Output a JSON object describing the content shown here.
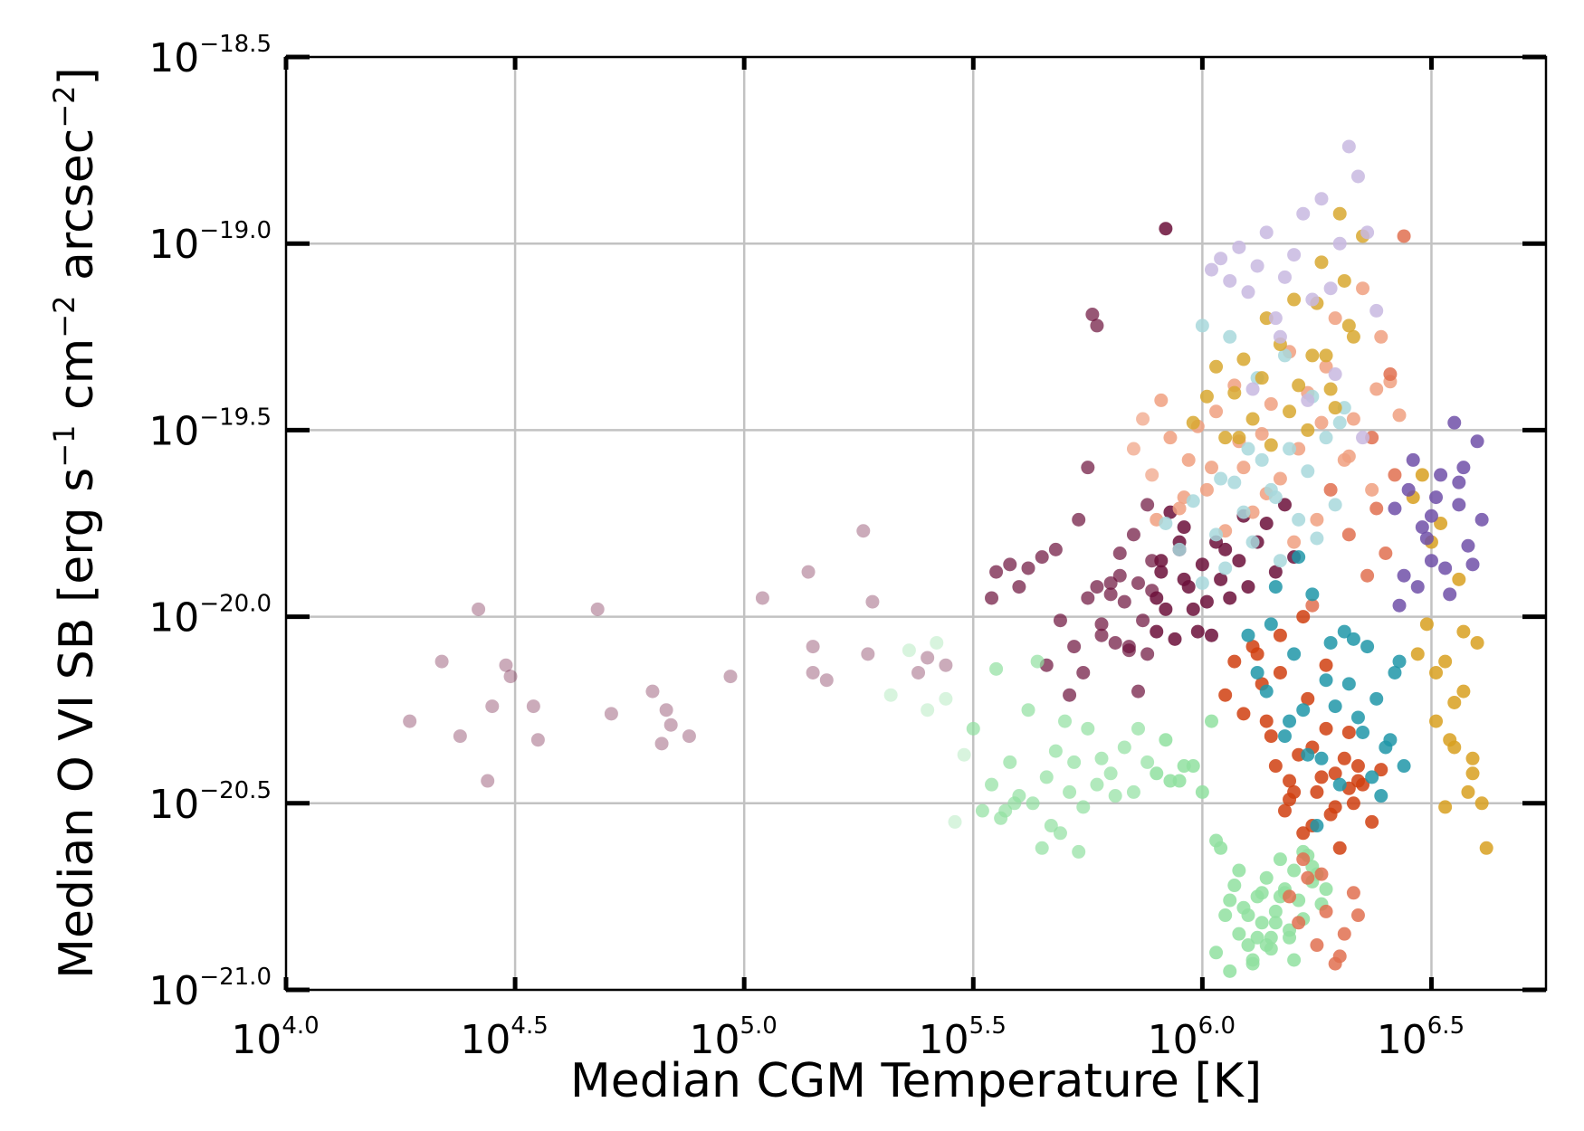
{
  "chart_data": {
    "type": "scatter",
    "xlabel": "Median CGM Temperature [K]",
    "ylabel": {
      "text": "Median O VI SB [erg s",
      "parts": [
        "Median O VI SB [erg s",
        "−1",
        " cm",
        "−2",
        " arcsec",
        "−2",
        "]"
      ]
    },
    "xscale": "log",
    "yscale": "log",
    "xlim": [
      4.0,
      6.75
    ],
    "ylim": [
      -21.0,
      -18.5
    ],
    "xticks": [
      {
        "base": "10",
        "exp": "4.0",
        "value": 4.0
      },
      {
        "base": "10",
        "exp": "4.5",
        "value": 4.5
      },
      {
        "base": "10",
        "exp": "5.0",
        "value": 5.0
      },
      {
        "base": "10",
        "exp": "5.5",
        "value": 5.5
      },
      {
        "base": "10",
        "exp": "6.0",
        "value": 6.0
      },
      {
        "base": "10",
        "exp": "6.5",
        "value": 6.5
      }
    ],
    "yticks": [
      {
        "base": "10",
        "exp": "−21.0",
        "value": -21.0
      },
      {
        "base": "10",
        "exp": "−20.5",
        "value": -20.5
      },
      {
        "base": "10",
        "exp": "−20.0",
        "value": -20.0
      },
      {
        "base": "10",
        "exp": "−19.5",
        "value": -19.5
      },
      {
        "base": "10",
        "exp": "−19.0",
        "value": -19.0
      },
      {
        "base": "10",
        "exp": "−18.5",
        "value": -18.5
      }
    ],
    "grid": true,
    "legend": "none",
    "series": [
      {
        "color": "#6b0f3a",
        "x": [
          4.27,
          4.34,
          4.38,
          4.42,
          4.44,
          4.45,
          4.48,
          4.49,
          4.54,
          4.55,
          4.68,
          4.71,
          4.8,
          4.82,
          4.83,
          4.84,
          4.88,
          4.97,
          5.04,
          5.14,
          5.15,
          5.15,
          5.18,
          5.26,
          5.27,
          5.28,
          5.38,
          5.4,
          5.44,
          5.55,
          5.58,
          5.62,
          5.65,
          5.68,
          5.73,
          5.76,
          5.77,
          5.8,
          5.85,
          5.89,
          5.92,
          5.54,
          5.6,
          5.66,
          5.75,
          5.82,
          5.88,
          5.95
        ],
        "y": [
          -20.28,
          -20.12,
          -20.32,
          -19.98,
          -20.44,
          -20.24,
          -20.13,
          -20.16,
          -20.24,
          -20.33,
          -19.98,
          -20.26,
          -20.2,
          -20.34,
          -20.25,
          -20.29,
          -20.32,
          -20.16,
          -19.95,
          -19.88,
          -20.08,
          -20.15,
          -20.17,
          -19.77,
          -20.1,
          -19.96,
          -20.15,
          -20.11,
          -20.13,
          -19.88,
          -19.86,
          -19.87,
          -19.84,
          -19.82,
          -19.74,
          -19.19,
          -19.22,
          -19.91,
          -19.78,
          -19.85,
          -18.96,
          -19.95,
          -19.92,
          -20.13,
          -19.6,
          -19.83,
          -19.7,
          -19.8
        ]
      },
      {
        "color": "#6b0f3a",
        "x": [
          5.69,
          5.72,
          5.75,
          5.78,
          5.8,
          5.81,
          5.83,
          5.84,
          5.86,
          5.87,
          5.88,
          5.89,
          5.9,
          5.91,
          5.92,
          5.93,
          5.94,
          5.95,
          5.96,
          5.98,
          5.99,
          6.0,
          6.01,
          6.02,
          6.04,
          6.05,
          6.06,
          6.08,
          6.1,
          6.12,
          6.14,
          6.16,
          6.18,
          6.2,
          5.74,
          5.78,
          5.82,
          5.86,
          5.91,
          5.96,
          5.71,
          5.77,
          5.84,
          5.9,
          5.97,
          6.03,
          6.09
        ],
        "y": [
          -20.01,
          -20.08,
          -19.95,
          -20.05,
          -19.94,
          -20.07,
          -19.96,
          -20.09,
          -19.91,
          -20.01,
          -20.1,
          -19.93,
          -20.04,
          -19.88,
          -19.98,
          -19.72,
          -20.06,
          -19.82,
          -19.9,
          -19.98,
          -20.04,
          -19.86,
          -19.96,
          -20.05,
          -19.9,
          -19.82,
          -19.95,
          -19.85,
          -19.92,
          -19.8,
          -19.75,
          -19.88,
          -19.7,
          -19.84,
          -20.15,
          -20.02,
          -19.89,
          -20.2,
          -19.85,
          -19.76,
          -20.21,
          -19.92,
          -20.08,
          -19.95,
          -19.92,
          -19.8,
          -19.73
        ]
      },
      {
        "color": "#90e0a0",
        "x": [
          5.32,
          5.36,
          5.4,
          5.42,
          5.44,
          5.46,
          5.48,
          5.5,
          5.52,
          5.54,
          5.55,
          5.57,
          5.58,
          5.6,
          5.62,
          5.63,
          5.65,
          5.66,
          5.68,
          5.7,
          5.71,
          5.72,
          5.74,
          5.75,
          5.77,
          5.78,
          5.8,
          5.81,
          5.83,
          5.85,
          5.86,
          5.88,
          5.9,
          5.92,
          5.93,
          5.95,
          5.96,
          5.98,
          6.0,
          6.02,
          6.03,
          5.64,
          5.67,
          5.56,
          5.59,
          5.69,
          5.73
        ],
        "y": [
          -20.21,
          -20.09,
          -20.25,
          -20.07,
          -20.22,
          -20.55,
          -20.37,
          -20.3,
          -20.52,
          -20.45,
          -20.14,
          -20.52,
          -20.39,
          -20.48,
          -20.25,
          -20.5,
          -20.62,
          -20.43,
          -20.36,
          -20.28,
          -20.47,
          -20.39,
          -20.51,
          -20.3,
          -20.45,
          -20.38,
          -20.42,
          -20.48,
          -20.35,
          -20.47,
          -20.3,
          -20.39,
          -20.42,
          -20.33,
          -20.44,
          -20.44,
          -20.4,
          -20.4,
          -20.47,
          -20.28,
          -20.6,
          -20.12,
          -20.56,
          -20.54,
          -20.5,
          -20.58,
          -20.63
        ]
      },
      {
        "color": "#90e0a0",
        "x": [
          6.03,
          6.05,
          6.06,
          6.07,
          6.08,
          6.09,
          6.1,
          6.11,
          6.12,
          6.13,
          6.14,
          6.15,
          6.16,
          6.17,
          6.18,
          6.19,
          6.2,
          6.21,
          6.22,
          6.23,
          6.24,
          6.25,
          6.26,
          6.27,
          6.04,
          6.06,
          6.08,
          6.1,
          6.12,
          6.14,
          6.16,
          6.18,
          6.2,
          6.22,
          6.24,
          6.11,
          6.13,
          6.15,
          6.17,
          6.19
        ],
        "y": [
          -20.9,
          -20.8,
          -20.95,
          -20.72,
          -20.85,
          -20.78,
          -20.88,
          -20.92,
          -20.75,
          -20.82,
          -20.7,
          -20.86,
          -20.79,
          -20.65,
          -20.73,
          -20.84,
          -20.68,
          -20.76,
          -20.81,
          -20.64,
          -20.71,
          -20.69,
          -20.77,
          -20.73,
          -20.62,
          -20.76,
          -20.68,
          -20.8,
          -20.86,
          -20.88,
          -20.82,
          -20.74,
          -20.92,
          -20.63,
          -20.67,
          -20.93,
          -20.74,
          -20.89,
          -20.75,
          -20.86
        ]
      },
      {
        "color": "#f0a080",
        "x": [
          5.85,
          5.87,
          5.89,
          5.91,
          5.93,
          5.95,
          5.97,
          5.99,
          6.01,
          6.03,
          6.05,
          6.07,
          6.09,
          6.11,
          6.13,
          6.15,
          6.17,
          6.19,
          6.21,
          6.23,
          6.25,
          6.27,
          6.29,
          6.31,
          6.33,
          6.35,
          6.37,
          6.39,
          6.41,
          6.43,
          5.9,
          5.96,
          6.02,
          6.08,
          6.14,
          6.2,
          6.26,
          6.32,
          6.38
        ],
        "y": [
          -19.55,
          -19.47,
          -19.62,
          -19.42,
          -19.52,
          -19.71,
          -19.58,
          -19.49,
          -19.66,
          -19.45,
          -19.77,
          -19.38,
          -19.6,
          -19.72,
          -19.51,
          -19.43,
          -19.63,
          -19.29,
          -19.55,
          -19.4,
          -19.74,
          -19.33,
          -19.2,
          -19.58,
          -19.47,
          -19.12,
          -19.66,
          -19.25,
          -19.37,
          -19.46,
          -19.74,
          -19.68,
          -19.6,
          -19.53,
          -19.67,
          -19.8,
          -19.48,
          -19.57,
          -19.39
        ]
      },
      {
        "color": "#d04010",
        "x": [
          6.05,
          6.07,
          6.09,
          6.11,
          6.13,
          6.15,
          6.17,
          6.19,
          6.21,
          6.23,
          6.25,
          6.27,
          6.29,
          6.31,
          6.33,
          6.35,
          6.37,
          6.39,
          6.16,
          6.18,
          6.2,
          6.22,
          6.24,
          6.26,
          6.28,
          6.3,
          6.32,
          6.34,
          6.14,
          6.19,
          6.24,
          6.29,
          6.34,
          6.12,
          6.17,
          6.22,
          6.27,
          6.32
        ],
        "y": [
          -20.21,
          -20.12,
          -20.26,
          -20.08,
          -20.18,
          -20.32,
          -20.15,
          -20.44,
          -20.37,
          -20.22,
          -20.47,
          -20.3,
          -20.42,
          -20.38,
          -20.5,
          -20.45,
          -20.55,
          -20.41,
          -20.4,
          -20.52,
          -20.47,
          -20.58,
          -20.35,
          -20.43,
          -20.53,
          -20.62,
          -20.46,
          -20.4,
          -20.28,
          -20.49,
          -20.56,
          -20.51,
          -20.44,
          -20.1,
          -20.05,
          -20.0,
          -20.13,
          -20.31
        ]
      },
      {
        "color": "#e07050",
        "x": [
          6.19,
          6.21,
          6.23,
          6.25,
          6.27,
          6.29,
          6.31,
          6.33,
          6.22,
          6.26,
          6.3,
          6.34,
          6.36,
          6.38,
          6.4,
          6.42,
          6.24,
          6.28,
          6.32,
          6.37,
          6.41,
          6.44
        ],
        "y": [
          -20.75,
          -20.82,
          -20.7,
          -20.88,
          -20.79,
          -20.93,
          -20.85,
          -20.74,
          -20.65,
          -20.69,
          -20.91,
          -20.8,
          -19.89,
          -19.71,
          -19.83,
          -19.62,
          -19.97,
          -19.66,
          -19.78,
          -19.52,
          -19.35,
          -18.98
        ]
      },
      {
        "color": "#2096a8",
        "x": [
          6.1,
          6.12,
          6.14,
          6.16,
          6.18,
          6.2,
          6.22,
          6.24,
          6.26,
          6.28,
          6.3,
          6.32,
          6.34,
          6.36,
          6.38,
          6.4,
          6.42,
          6.44,
          6.15,
          6.19,
          6.23,
          6.27,
          6.31,
          6.35,
          6.39,
          6.43,
          6.25,
          6.29,
          6.33,
          6.37,
          6.41,
          6.21
        ],
        "y": [
          -20.05,
          -20.15,
          -20.2,
          -19.92,
          -20.32,
          -20.1,
          -20.25,
          -19.94,
          -20.38,
          -20.07,
          -20.45,
          -20.18,
          -20.27,
          -20.08,
          -20.22,
          -20.35,
          -20.15,
          -20.4,
          -20.02,
          -20.28,
          -20.37,
          -20.17,
          -20.04,
          -20.31,
          -20.48,
          -20.12,
          -20.56,
          -20.24,
          -20.06,
          -20.43,
          -20.33,
          -19.84
        ]
      },
      {
        "color": "#a8d8dc",
        "x": [
          5.92,
          5.95,
          5.98,
          6.0,
          6.03,
          6.05,
          6.07,
          6.09,
          6.11,
          6.13,
          6.15,
          6.17,
          6.19,
          6.21,
          6.23,
          6.25,
          6.27,
          6.29,
          6.31,
          6.0,
          6.06,
          6.12,
          6.18,
          6.24,
          6.3,
          6.04,
          6.1,
          6.16
        ],
        "y": [
          -19.75,
          -19.82,
          -19.69,
          -19.91,
          -19.78,
          -19.87,
          -19.64,
          -19.72,
          -19.8,
          -19.58,
          -19.66,
          -19.85,
          -19.55,
          -19.74,
          -19.61,
          -19.79,
          -19.52,
          -19.7,
          -19.44,
          -19.22,
          -19.25,
          -19.36,
          -19.3,
          -19.41,
          -19.48,
          -19.63,
          -19.55,
          -19.68
        ]
      },
      {
        "color": "#d8a830",
        "x": [
          5.98,
          6.01,
          6.03,
          6.05,
          6.07,
          6.09,
          6.11,
          6.13,
          6.15,
          6.17,
          6.19,
          6.21,
          6.23,
          6.25,
          6.27,
          6.29,
          6.31,
          6.33,
          6.35,
          6.08,
          6.14,
          6.2,
          6.26,
          6.32,
          6.24,
          6.28,
          6.3
        ],
        "y": [
          -19.48,
          -19.41,
          -19.33,
          -19.52,
          -19.4,
          -19.31,
          -19.47,
          -19.36,
          -19.54,
          -19.27,
          -19.45,
          -19.38,
          -19.5,
          -19.16,
          -19.3,
          -19.44,
          -19.1,
          -19.25,
          -18.98,
          -19.52,
          -19.2,
          -19.15,
          -19.05,
          -19.22,
          -19.3,
          -19.39,
          -18.92
        ]
      },
      {
        "color": "#d8a020",
        "x": [
          6.47,
          6.49,
          6.51,
          6.53,
          6.55,
          6.57,
          6.59,
          6.61,
          6.48,
          6.52,
          6.56,
          6.6,
          6.5,
          6.54,
          6.58,
          6.62,
          6.46,
          6.51,
          6.55,
          6.59,
          6.53,
          6.57
        ],
        "y": [
          -20.1,
          -20.02,
          -20.28,
          -20.12,
          -20.35,
          -20.2,
          -20.42,
          -20.5,
          -19.62,
          -19.75,
          -19.9,
          -20.07,
          -19.8,
          -20.33,
          -20.47,
          -20.62,
          -19.68,
          -20.15,
          -20.23,
          -20.38,
          -20.51,
          -20.04
        ]
      },
      {
        "color": "#7050a8",
        "x": [
          6.42,
          6.44,
          6.46,
          6.48,
          6.5,
          6.52,
          6.54,
          6.56,
          6.58,
          6.6,
          6.45,
          6.49,
          6.53,
          6.57,
          6.61,
          6.47,
          6.51,
          6.55,
          6.59,
          6.43,
          6.5,
          6.56
        ],
        "y": [
          -19.71,
          -19.89,
          -19.58,
          -19.76,
          -19.85,
          -19.62,
          -19.94,
          -19.7,
          -19.81,
          -19.53,
          -19.66,
          -19.79,
          -19.87,
          -19.6,
          -19.74,
          -19.92,
          -19.68,
          -19.48,
          -19.86,
          -19.97,
          -19.73,
          -19.64
        ]
      },
      {
        "color": "#c8b8e0",
        "x": [
          6.02,
          6.04,
          6.06,
          6.08,
          6.1,
          6.12,
          6.14,
          6.16,
          6.18,
          6.2,
          6.22,
          6.24,
          6.26,
          6.28,
          6.3,
          6.32,
          6.34,
          6.36,
          6.38,
          6.11,
          6.17,
          6.23,
          6.29,
          6.35
        ],
        "y": [
          -19.07,
          -19.04,
          -19.1,
          -19.01,
          -19.13,
          -19.06,
          -18.97,
          -19.2,
          -19.09,
          -19.03,
          -18.92,
          -19.15,
          -18.88,
          -19.12,
          -19.0,
          -18.74,
          -18.82,
          -18.97,
          -19.18,
          -19.39,
          -19.25,
          -19.42,
          -19.35,
          -19.52
        ]
      }
    ]
  }
}
